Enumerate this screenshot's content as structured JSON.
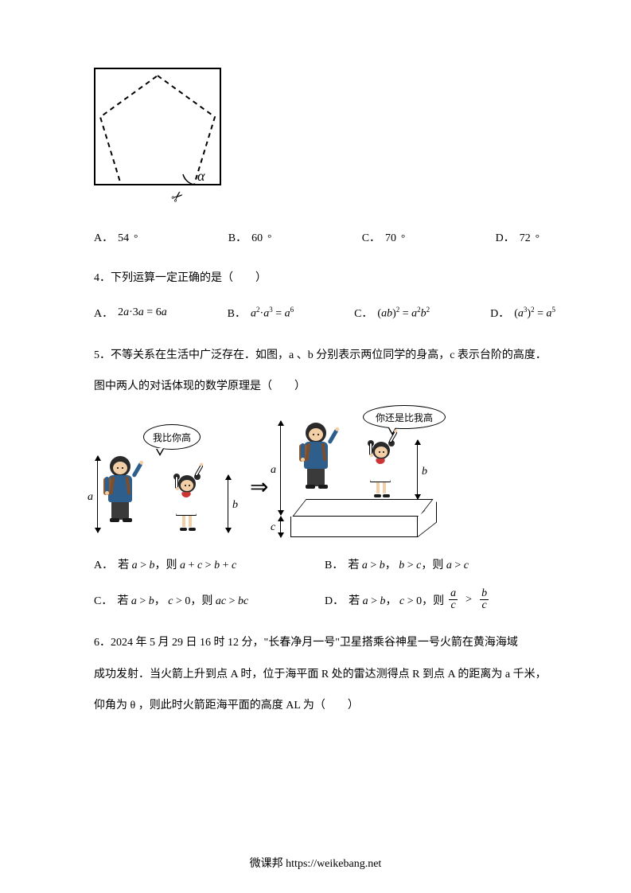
{
  "figure1": {
    "alpha_symbol": "α",
    "scissor_glyph": "✂"
  },
  "q3_options": {
    "a": {
      "label": "A．",
      "value": "54",
      "deg": "°"
    },
    "b": {
      "label": "B．",
      "value": "60",
      "deg": "°"
    },
    "c": {
      "label": "C．",
      "value": "70",
      "deg": "°"
    },
    "d": {
      "label": "D．",
      "value": "72",
      "deg": "°"
    }
  },
  "q4": {
    "text": "4．下列运算一定正确的是（　　）",
    "a": {
      "label": "A．",
      "expr_html": "2<span class='math'>a</span>·3<span class='math'>a</span> = 6<span class='math'>a</span>"
    },
    "b": {
      "label": "B．",
      "expr_html": "<span class='math'>a</span><span class='sup'>2</span>·<span class='math'>a</span><span class='sup'>3</span> = <span class='math'>a</span><span class='sup'>6</span>"
    },
    "c": {
      "label": "C．",
      "expr_html": "(<span class='math'>ab</span>)<span class='sup'>2</span> = <span class='math'>a</span><span class='sup'>2</span><span class='math'>b</span><span class='sup'>2</span>"
    },
    "d": {
      "label": "D．",
      "expr_html": "(<span class='math'>a</span><span class='sup'>3</span>)<span class='sup'>2</span> = <span class='math'>a</span><span class='sup'>5</span>"
    }
  },
  "q5": {
    "text": "5．不等关系在生活中广泛存在．如图，a 、b 分别表示两位同学的身高，c 表示台阶的高度．图中两人的对话体现的数学原理是（　　）",
    "speech_left": "我比你高",
    "speech_right": "你还是比我高",
    "labels": {
      "a": "a",
      "b": "b",
      "c": "c"
    },
    "arrow": "⇒",
    "a": {
      "label": "A．",
      "expr_html": "若 <span class='math'>a</span> &gt; <span class='math'>b</span>，则 <span class='math'>a</span> + <span class='math'>c</span> &gt; <span class='math'>b</span> + <span class='math'>c</span>"
    },
    "b": {
      "label": "B．",
      "expr_html": "若 <span class='math'>a</span> &gt; <span class='math'>b</span>， <span class='math'>b</span> &gt; <span class='math'>c</span>，则 <span class='math'>a</span> &gt; <span class='math'>c</span>"
    },
    "c": {
      "label": "C．",
      "expr_html": "若 <span class='math'>a</span> &gt; <span class='math'>b</span>， <span class='math'>c</span> &gt; 0，则 <span class='math'>ac</span> &gt; <span class='math'>bc</span>"
    },
    "d": {
      "label": "D．",
      "expr_html": "若 <span class='math'>a</span> &gt; <span class='math'>b</span>， <span class='math'>c</span> &gt; 0，则 "
    }
  },
  "q5_frac": {
    "a": "a",
    "b": "b",
    "c1": "c",
    "c2": "c",
    "gt": ">"
  },
  "q6": {
    "line1": "6．2024 年 5 月 29 日 16 时 12 分，\"长春净月一号\"卫星搭乘谷神星一号火箭在黄海海域",
    "line2": "成功发射．当火箭上升到点 A 时，位于海平面 R 处的雷达测得点 R 到点 A 的距离为 a 千米，",
    "line3": "仰角为 θ ，则此时火箭距海平面的高度 AL 为（　　）"
  },
  "footer": "微课邦 https://weikebang.net"
}
